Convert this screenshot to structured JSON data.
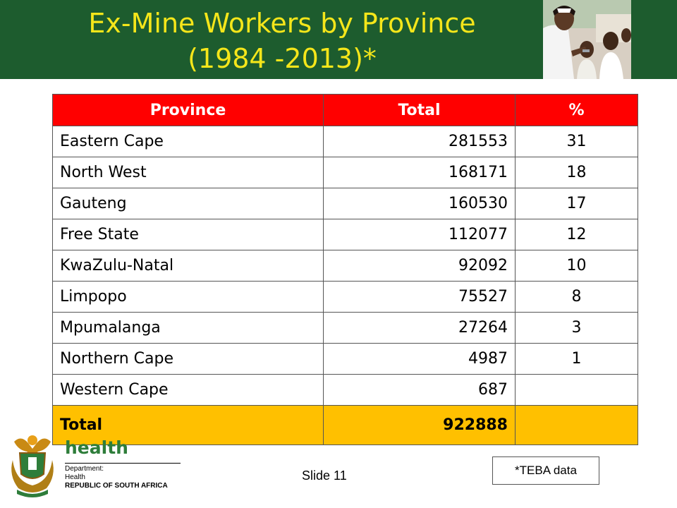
{
  "slide": {
    "title_line1": "Ex-Mine Workers by Province",
    "title_line2": "(1984 -2013)*",
    "slide_number": "Slide 11",
    "source_note": "*TEBA data"
  },
  "table": {
    "headers": [
      "Province",
      "Total",
      "%"
    ],
    "rows": [
      {
        "province": "Eastern Cape",
        "total": "281553",
        "pct": "31"
      },
      {
        "province": "North West",
        "total": "168171",
        "pct": "18"
      },
      {
        "province": "Gauteng",
        "total": "160530",
        "pct": "17"
      },
      {
        "province": "Free State",
        "total": "112077",
        "pct": "12"
      },
      {
        "province": "KwaZulu-Natal",
        "total": "92092",
        "pct": "10"
      },
      {
        "province": "Limpopo",
        "total": "75527",
        "pct": "8"
      },
      {
        "province": "Mpumalanga",
        "total": "27264",
        "pct": "3"
      },
      {
        "province": "Northern Cape",
        "total": "4987",
        "pct": "1"
      },
      {
        "province": "Western Cape",
        "total": "687",
        "pct": ""
      }
    ],
    "total_row": {
      "label": "Total",
      "total": "922888",
      "pct": ""
    }
  },
  "logo": {
    "brand": "health",
    "line1": "Department:",
    "line2": "Health",
    "line3": "REPUBLIC OF SOUTH AFRICA"
  },
  "colors": {
    "header_bg": "#1d5c2e",
    "title_text": "#f5e61a",
    "table_header_bg": "#ff0000",
    "total_row_bg": "#ffc000"
  }
}
